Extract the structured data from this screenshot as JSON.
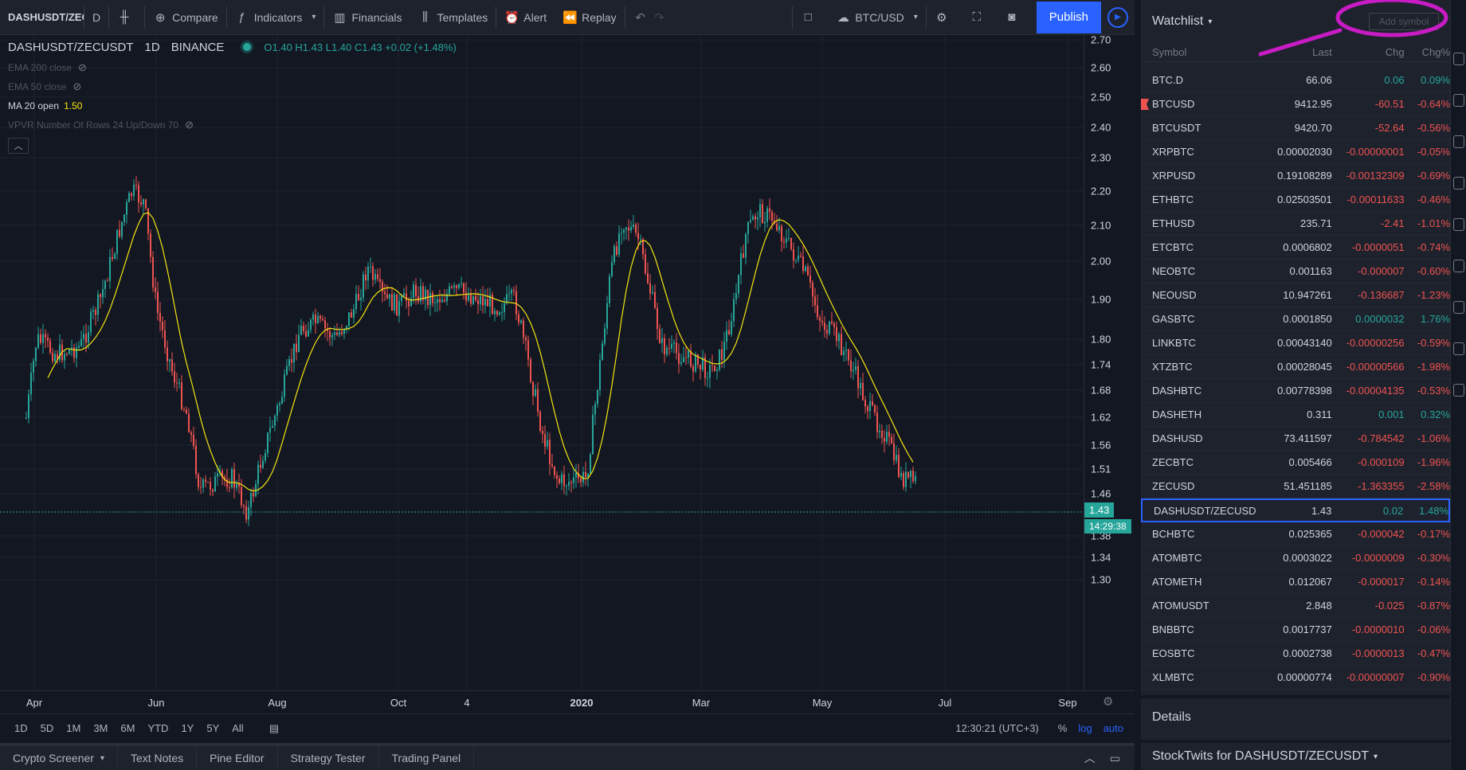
{
  "toolbar": {
    "symbol": "DASHUSDT/ZECUSDT",
    "interval": "D",
    "chart_type_icon": "candles-icon",
    "compare": "Compare",
    "indicators": "Indicators",
    "financials": "Financials",
    "templates": "Templates",
    "alert": "Alert",
    "replay": "Replay",
    "compare_symbol": "BTC/USD",
    "publish": "Publish"
  },
  "legend": {
    "symbol": "DASHUSDT/ZECUSDT",
    "interval": "1D",
    "exchange": "BINANCE",
    "ohlc": "O1.40  H1.43  L1.40  C1.43  +0.02 (+1.48%)",
    "indicators": [
      {
        "label": "EMA 200 close"
      },
      {
        "label": "EMA 50 close"
      },
      {
        "label": "MA 20 open",
        "value": "1.50"
      },
      {
        "label": "VPVR Number Of Rows 24 Up/Down 70"
      }
    ]
  },
  "price_axis": {
    "ticks": [
      "2.70",
      "2.60",
      "2.50",
      "2.40",
      "2.30",
      "2.20",
      "2.10",
      "2.00",
      "1.90",
      "1.80",
      "1.74",
      "1.68",
      "1.62",
      "1.56",
      "1.51",
      "1.46",
      "1.38",
      "1.34",
      "1.30"
    ],
    "last_price": "1.43",
    "countdown": "14:29:38"
  },
  "time_axis": {
    "ticks": [
      {
        "label": "Apr",
        "bold": false
      },
      {
        "label": "Jun",
        "bold": false
      },
      {
        "label": "Aug",
        "bold": false
      },
      {
        "label": "Oct",
        "bold": false
      },
      {
        "label": "4",
        "bold": false
      },
      {
        "label": "2020",
        "bold": true
      },
      {
        "label": "Mar",
        "bold": false
      },
      {
        "label": "May",
        "bold": false
      },
      {
        "label": "Jul",
        "bold": false
      },
      {
        "label": "Sep",
        "bold": false
      }
    ]
  },
  "range_bar": {
    "ranges": [
      "1D",
      "5D",
      "1M",
      "3M",
      "6M",
      "YTD",
      "1Y",
      "5Y",
      "All"
    ],
    "clock": "12:30:21 (UTC+3)",
    "percent": "%",
    "log": "log",
    "auto": "auto"
  },
  "bottom_tabs": [
    "Crypto Screener",
    "Text Notes",
    "Pine Editor",
    "Strategy Tester",
    "Trading Panel"
  ],
  "watchlist": {
    "title": "Watchlist",
    "add_symbol_placeholder": "Add symbol",
    "columns": {
      "symbol": "Symbol",
      "last": "Last",
      "chg": "Chg",
      "chg_pct": "Chg%"
    },
    "rows": [
      {
        "symbol": "BTC.D",
        "last": "66.06",
        "chg": "0.06",
        "pct": "0.09%",
        "dir": "up"
      },
      {
        "symbol": "BTCUSD",
        "last": "9412.95",
        "chg": "-60.51",
        "pct": "-0.64%",
        "dir": "down"
      },
      {
        "symbol": "BTCUSDT",
        "last": "9420.70",
        "chg": "-52.64",
        "pct": "-0.56%",
        "dir": "down"
      },
      {
        "symbol": "XRPBTC",
        "last": "0.00002030",
        "chg": "-0.00000001",
        "pct": "-0.05%",
        "dir": "down"
      },
      {
        "symbol": "XRPUSD",
        "last": "0.19108289",
        "chg": "-0.00132309",
        "pct": "-0.69%",
        "dir": "down"
      },
      {
        "symbol": "ETHBTC",
        "last": "0.02503501",
        "chg": "-0.00011633",
        "pct": "-0.46%",
        "dir": "down"
      },
      {
        "symbol": "ETHUSD",
        "last": "235.71",
        "chg": "-2.41",
        "pct": "-1.01%",
        "dir": "down"
      },
      {
        "symbol": "ETCBTC",
        "last": "0.0006802",
        "chg": "-0.0000051",
        "pct": "-0.74%",
        "dir": "down"
      },
      {
        "symbol": "NEOBTC",
        "last": "0.001163",
        "chg": "-0.000007",
        "pct": "-0.60%",
        "dir": "down"
      },
      {
        "symbol": "NEOUSD",
        "last": "10.947261",
        "chg": "-0.136687",
        "pct": "-1.23%",
        "dir": "down"
      },
      {
        "symbol": "GASBTC",
        "last": "0.0001850",
        "chg": "0.0000032",
        "pct": "1.76%",
        "dir": "up"
      },
      {
        "symbol": "LINKBTC",
        "last": "0.00043140",
        "chg": "-0.00000256",
        "pct": "-0.59%",
        "dir": "down"
      },
      {
        "symbol": "XTZBTC",
        "last": "0.00028045",
        "chg": "-0.00000566",
        "pct": "-1.98%",
        "dir": "down"
      },
      {
        "symbol": "DASHBTC",
        "last": "0.00778398",
        "chg": "-0.00004135",
        "pct": "-0.53%",
        "dir": "down"
      },
      {
        "symbol": "DASHETH",
        "last": "0.311",
        "chg": "0.001",
        "pct": "0.32%",
        "dir": "up"
      },
      {
        "symbol": "DASHUSD",
        "last": "73.411597",
        "chg": "-0.784542",
        "pct": "-1.06%",
        "dir": "down"
      },
      {
        "symbol": "ZECBTC",
        "last": "0.005466",
        "chg": "-0.000109",
        "pct": "-1.96%",
        "dir": "down"
      },
      {
        "symbol": "ZECUSD",
        "last": "51.451185",
        "chg": "-1.363355",
        "pct": "-2.58%",
        "dir": "down"
      },
      {
        "symbol": "DASHUSDT/ZECUSDT",
        "last": "1.43",
        "chg": "0.02",
        "pct": "1.48%",
        "dir": "up",
        "selected": true
      },
      {
        "symbol": "BCHBTC",
        "last": "0.025365",
        "chg": "-0.000042",
        "pct": "-0.17%",
        "dir": "down"
      },
      {
        "symbol": "ATOMBTC",
        "last": "0.0003022",
        "chg": "-0.0000009",
        "pct": "-0.30%",
        "dir": "down"
      },
      {
        "symbol": "ATOMETH",
        "last": "0.012067",
        "chg": "-0.000017",
        "pct": "-0.14%",
        "dir": "down"
      },
      {
        "symbol": "ATOMUSDT",
        "last": "2.848",
        "chg": "-0.025",
        "pct": "-0.87%",
        "dir": "down"
      },
      {
        "symbol": "BNBBTC",
        "last": "0.0017737",
        "chg": "-0.0000010",
        "pct": "-0.06%",
        "dir": "down"
      },
      {
        "symbol": "EOSBTC",
        "last": "0.0002738",
        "chg": "-0.0000013",
        "pct": "-0.47%",
        "dir": "down"
      },
      {
        "symbol": "XLMBTC",
        "last": "0.00000774",
        "chg": "-0.00000007",
        "pct": "-0.90%",
        "dir": "down"
      }
    ]
  },
  "details": {
    "title": "Details"
  },
  "stocktwits": {
    "title": "StockTwits for DASHUSDT/ZECUSDT"
  },
  "colors": {
    "up": "#26a69a",
    "down": "#ef5350",
    "ma": "#f5e50f",
    "accent": "#2962ff",
    "annotation": "#c71bc4"
  }
}
